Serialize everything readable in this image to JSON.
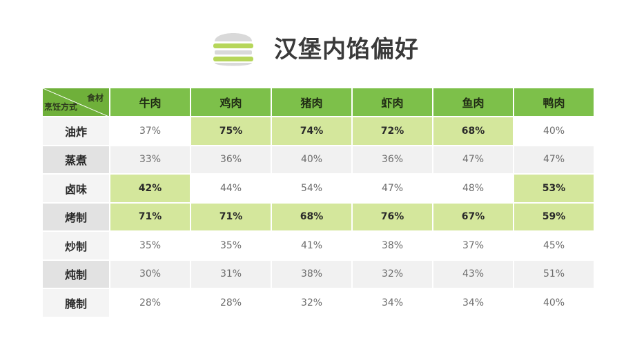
{
  "title": "汉堡内馅偏好",
  "chart_data": {
    "type": "table",
    "title": "汉堡内馅偏好",
    "corner_top_label": "食材",
    "corner_bottom_label": "烹饪方式",
    "columns": [
      "牛肉",
      "鸡肉",
      "猪肉",
      "虾肉",
      "鱼肉",
      "鸭肉"
    ],
    "rows": [
      {
        "label": "油炸",
        "values": [
          "37%",
          "75%",
          "74%",
          "72%",
          "68%",
          "40%"
        ],
        "highlight": [
          false,
          true,
          true,
          true,
          true,
          false
        ]
      },
      {
        "label": "蒸煮",
        "values": [
          "33%",
          "36%",
          "40%",
          "36%",
          "47%",
          "47%"
        ],
        "highlight": [
          false,
          false,
          false,
          false,
          false,
          false
        ]
      },
      {
        "label": "卤味",
        "values": [
          "42%",
          "44%",
          "54%",
          "47%",
          "48%",
          "53%"
        ],
        "highlight": [
          true,
          false,
          false,
          false,
          false,
          true
        ]
      },
      {
        "label": "烤制",
        "values": [
          "71%",
          "71%",
          "68%",
          "76%",
          "67%",
          "59%"
        ],
        "highlight": [
          true,
          true,
          true,
          true,
          true,
          true
        ]
      },
      {
        "label": "炒制",
        "values": [
          "35%",
          "35%",
          "41%",
          "38%",
          "37%",
          "45%"
        ],
        "highlight": [
          false,
          false,
          false,
          false,
          false,
          false
        ]
      },
      {
        "label": "炖制",
        "values": [
          "30%",
          "31%",
          "38%",
          "32%",
          "43%",
          "51%"
        ],
        "highlight": [
          false,
          false,
          false,
          false,
          false,
          false
        ]
      },
      {
        "label": "腌制",
        "values": [
          "28%",
          "28%",
          "32%",
          "34%",
          "34%",
          "40%"
        ],
        "highlight": [
          false,
          false,
          false,
          false,
          false,
          false
        ]
      }
    ]
  },
  "colors": {
    "header_green": "#7dc04a",
    "highlight_green": "#d4e79c",
    "icon_gray": "#d9d9d9",
    "icon_green": "#b6d65a"
  },
  "icons": {
    "title_icon": "burger-icon"
  }
}
